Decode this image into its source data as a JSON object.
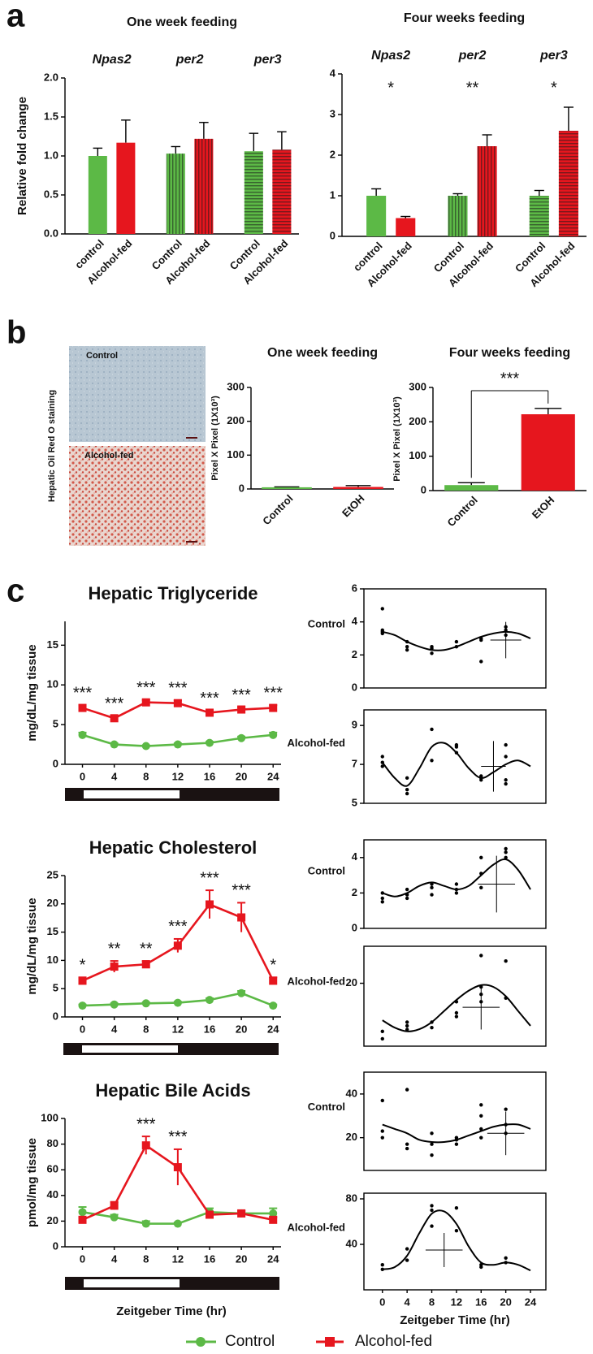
{
  "panel_labels": [
    "a",
    "b",
    "c"
  ],
  "staining": {
    "label": "Hepatic Oil Red O staining",
    "images": [
      "Control",
      "Alcohol-fed"
    ]
  },
  "chart_data": [
    {
      "type": "bar",
      "title": "One week feeding",
      "ylabel": "Relative fold change",
      "groups": [
        "Npas2",
        "per2",
        "per3"
      ],
      "categories": [
        "control",
        "Alcohol-fed",
        "Control",
        "Alcohol-fed",
        "Control",
        "Alcohol-fed"
      ],
      "values": [
        1.0,
        1.17,
        1.03,
        1.22,
        1.06,
        1.08
      ],
      "errors": [
        0.1,
        0.29,
        0.09,
        0.21,
        0.23,
        0.23
      ],
      "colors": [
        "#5cb946",
        "#e6161e",
        "#5cb946",
        "#e6161e",
        "#5cb946",
        "#e6161e"
      ],
      "patterns": [
        "solid",
        "solid",
        "vertical",
        "vertical",
        "horizontal",
        "horizontal"
      ],
      "ylim": [
        0,
        2
      ],
      "yticks": [
        {
          "value": 0,
          "label": "0.0"
        },
        0.5,
        {
          "value": 1,
          "label": "1.0"
        },
        1.5,
        {
          "value": 2,
          "label": "2.0"
        }
      ]
    },
    {
      "type": "bar",
      "title": "Four weeks feeding",
      "groups": [
        "Npas2",
        "per2",
        "per3"
      ],
      "annotations": [
        "*",
        "**",
        "*"
      ],
      "categories": [
        "control",
        "Alcohol-fed",
        "Control",
        "Alcohol-fed",
        "Control",
        "Alcohol-fed"
      ],
      "values": [
        1.0,
        0.45,
        1.0,
        2.22,
        1.0,
        2.6
      ],
      "errors": [
        0.17,
        0.04,
        0.05,
        0.28,
        0.13,
        0.58
      ],
      "colors": [
        "#5cb946",
        "#e6161e",
        "#5cb946",
        "#e6161e",
        "#5cb946",
        "#e6161e"
      ],
      "patterns": [
        "solid",
        "solid",
        "vertical",
        "vertical",
        "horizontal",
        "horizontal"
      ],
      "ylim": [
        0,
        4
      ],
      "yticks": [
        0,
        1,
        2,
        3,
        4
      ]
    },
    {
      "type": "bar",
      "title": "One week feeding",
      "ylabel": "Pixel X Pixel (1X10³)",
      "categories": [
        "Control",
        "EtOH"
      ],
      "values": [
        5,
        6
      ],
      "errors": [
        1,
        4
      ],
      "colors": [
        "#5cb946",
        "#e6161e"
      ],
      "ylim": [
        0,
        300
      ],
      "yticks": [
        0,
        100,
        200,
        300
      ]
    },
    {
      "type": "bar",
      "title": "Four weeks feeding",
      "ylabel": "Pixel X Pixel (1X10³)",
      "significance": "***",
      "categories": [
        "Control",
        "EtOH"
      ],
      "values": [
        16,
        222
      ],
      "errors": [
        7,
        17
      ],
      "colors": [
        "#5cb946",
        "#e6161e"
      ],
      "ylim": [
        0,
        300
      ],
      "yticks": [
        0,
        100,
        200,
        300
      ]
    },
    {
      "type": "line",
      "title": "Hepatic Triglyceride",
      "ylabel": "mg/dL/mg tissue",
      "x": [
        0,
        4,
        8,
        12,
        16,
        20,
        24
      ],
      "xlim": [
        -2.2,
        25
      ],
      "xticks": [
        0,
        4,
        8,
        12,
        16,
        20,
        24
      ],
      "ylim": [
        0,
        18
      ],
      "yticks": [
        0,
        5,
        10,
        15
      ],
      "series": [
        {
          "name": "Control",
          "color": "#5cb946",
          "marker": "circle",
          "values": [
            3.7,
            2.5,
            2.3,
            2.5,
            2.7,
            3.3,
            3.7
          ],
          "errors": [
            0.3,
            0.15,
            0.1,
            0.15,
            0.15,
            0.2,
            0.3
          ]
        },
        {
          "name": "Alcohol-fed",
          "color": "#e6161e",
          "marker": "square",
          "values": [
            7.1,
            5.8,
            7.8,
            7.7,
            6.5,
            6.9,
            7.1
          ],
          "errors": [
            0.35,
            0.3,
            0.3,
            0.35,
            0.3,
            0.3,
            0.35
          ]
        }
      ],
      "annotations": [
        "***",
        "***",
        "***",
        "***",
        "***",
        "***",
        "***"
      ]
    },
    {
      "type": "line",
      "title": "Hepatic Cholesterol",
      "ylabel": "mg/dL/mg tissue",
      "x": [
        0,
        4,
        8,
        12,
        16,
        20,
        24
      ],
      "xlim": [
        -2.2,
        25
      ],
      "xticks": [
        0,
        4,
        8,
        12,
        16,
        20,
        24
      ],
      "ylim": [
        0,
        25
      ],
      "yticks": [
        0,
        5,
        10,
        15,
        20,
        25
      ],
      "series": [
        {
          "name": "Control",
          "color": "#5cb946",
          "marker": "circle",
          "values": [
            2.0,
            2.2,
            2.4,
            2.5,
            3.0,
            4.2,
            2.0
          ],
          "errors": [
            0.2,
            0.2,
            0.2,
            0.2,
            0.3,
            0.4,
            0.2
          ]
        },
        {
          "name": "Alcohol-fed",
          "color": "#e6161e",
          "marker": "square",
          "values": [
            6.4,
            8.9,
            9.3,
            12.6,
            19.9,
            17.6,
            6.4
          ],
          "errors": [
            0.6,
            1.0,
            0.6,
            1.2,
            2.5,
            2.6,
            0.6
          ]
        }
      ],
      "annotations": [
        "*",
        "**",
        "**",
        "***",
        "***",
        "***",
        "*"
      ]
    },
    {
      "type": "line",
      "title": "Hepatic Bile Acids",
      "ylabel": "pmol/mg tissue",
      "xlabel": "Zeitgeber Time (hr)",
      "x": [
        0,
        4,
        8,
        12,
        16,
        20,
        24
      ],
      "xlim": [
        -2.2,
        25
      ],
      "xticks": [
        0,
        4,
        8,
        12,
        16,
        20,
        24
      ],
      "ylim": [
        0,
        100
      ],
      "yticks": [
        0,
        20,
        40,
        60,
        80,
        100
      ],
      "series": [
        {
          "name": "Control",
          "color": "#5cb946",
          "marker": "circle",
          "values": [
            27,
            23,
            18,
            18,
            27,
            26,
            26
          ],
          "errors": [
            4,
            2,
            2,
            1,
            3,
            2,
            4
          ]
        },
        {
          "name": "Alcohol-fed",
          "color": "#e6161e",
          "marker": "square",
          "values": [
            21,
            32,
            79,
            62,
            25,
            26,
            21
          ],
          "errors": [
            2,
            3,
            7,
            14,
            2,
            2,
            2
          ]
        }
      ],
      "annotations": [
        null,
        null,
        "***",
        "***",
        null,
        null,
        null
      ]
    },
    {
      "type": "scatter",
      "label": "Control",
      "xlim": [
        -3,
        26.5
      ],
      "ylim": [
        0,
        6
      ],
      "yticks": [
        0,
        2,
        4,
        6
      ],
      "points": {
        "x": [
          0,
          0,
          0,
          0,
          4,
          4,
          4,
          8,
          8,
          8,
          12,
          12,
          16,
          16,
          16,
          20,
          20,
          20
        ],
        "y": [
          4.8,
          3.4,
          3.3,
          3.5,
          2.8,
          2.5,
          2.3,
          2.4,
          2.1,
          2.5,
          2.8,
          2.5,
          3.0,
          1.6,
          2.9,
          3.7,
          3.5,
          3.2
        ]
      },
      "fit": {
        "x": [
          0,
          2,
          4,
          6,
          8,
          10,
          12,
          14,
          16,
          18,
          20,
          22,
          24
        ],
        "y": [
          3.4,
          3.2,
          2.8,
          2.5,
          2.3,
          2.3,
          2.5,
          2.8,
          3.1,
          3.3,
          3.4,
          3.3,
          3.0
        ]
      },
      "cross": {
        "x": 20,
        "y": 2.9,
        "xerr": 2.5,
        "yerr": 1.1
      }
    },
    {
      "type": "scatter",
      "label": "Alcohol-fed",
      "xlim": [
        -3,
        26.5
      ],
      "ylim": [
        5,
        9.8
      ],
      "yticks": [
        5,
        7,
        9
      ],
      "points": {
        "x": [
          0,
          0,
          0,
          4,
          4,
          4,
          8,
          8,
          12,
          12,
          12,
          16,
          16,
          16,
          20,
          20,
          20,
          20
        ],
        "y": [
          7.4,
          7.1,
          6.9,
          6.3,
          5.7,
          5.5,
          8.8,
          7.2,
          8.0,
          7.9,
          7.6,
          6.3,
          6.2,
          6.4,
          8.0,
          7.4,
          6.2,
          6.0
        ]
      },
      "fit": {
        "x": [
          0,
          2,
          4,
          6,
          8,
          10,
          12,
          14,
          16,
          18,
          20,
          22,
          24
        ],
        "y": [
          7.1,
          6.3,
          5.9,
          6.8,
          7.9,
          8.1,
          7.6,
          6.8,
          6.3,
          6.6,
          7.0,
          7.2,
          6.9
        ]
      },
      "cross": {
        "x": 18,
        "y": 6.9,
        "xerr": 2,
        "yerr": 1.3
      }
    },
    {
      "type": "scatter",
      "label": "Control",
      "xlim": [
        -3,
        26.5
      ],
      "ylim": [
        0,
        5
      ],
      "yticks": [
        0,
        2,
        4
      ],
      "points": {
        "x": [
          0,
          0,
          0,
          4,
          4,
          4,
          8,
          8,
          8,
          12,
          12,
          12,
          16,
          16,
          16,
          20,
          20,
          20
        ],
        "y": [
          2.0,
          1.7,
          1.5,
          2.2,
          1.9,
          1.7,
          2.5,
          2.3,
          1.9,
          2.5,
          2.2,
          2.0,
          4.0,
          3.1,
          2.3,
          4.5,
          4.3,
          4.0
        ]
      },
      "fit": {
        "x": [
          0,
          2,
          4,
          6,
          8,
          10,
          12,
          14,
          16,
          18,
          20,
          22,
          24
        ],
        "y": [
          2.0,
          1.8,
          2.0,
          2.4,
          2.6,
          2.4,
          2.2,
          2.4,
          3.0,
          3.6,
          3.9,
          3.3,
          2.2
        ]
      },
      "cross": {
        "x": 18.5,
        "y": 2.5,
        "xerr": 3,
        "yerr": 1.6
      }
    },
    {
      "type": "scatter",
      "label": "Alcohol-fed",
      "xlim": [
        -3,
        26.5
      ],
      "ylim": [
        3,
        30
      ],
      "yticks": [
        20
      ],
      "points": {
        "x": [
          0,
          0,
          4,
          4,
          4,
          8,
          8,
          12,
          12,
          12,
          16,
          16,
          16,
          16,
          20,
          20
        ],
        "y": [
          7,
          5,
          9.5,
          8.5,
          7.5,
          9.5,
          8,
          15,
          12,
          11,
          27.5,
          19,
          17,
          15,
          26,
          16
        ]
      },
      "fit": {
        "x": [
          0,
          2,
          4,
          6,
          8,
          10,
          12,
          14,
          16,
          18,
          20,
          22,
          24
        ],
        "y": [
          10,
          8,
          7,
          7.6,
          9.5,
          12.5,
          15.5,
          18,
          19.5,
          19,
          16.5,
          12.5,
          8.5
        ]
      },
      "cross": {
        "x": 16,
        "y": 13.5,
        "xerr": 3,
        "yerr": 6
      }
    },
    {
      "type": "scatter",
      "label": "Control",
      "xlim": [
        -3,
        26.5
      ],
      "ylim": [
        5,
        50
      ],
      "yticks": [
        20,
        40
      ],
      "points": {
        "x": [
          0,
          0,
          0,
          4,
          4,
          4,
          8,
          8,
          8,
          12,
          12,
          12,
          16,
          16,
          16,
          16,
          20,
          20,
          20
        ],
        "y": [
          37,
          23,
          20,
          42,
          17,
          15,
          22,
          17,
          12,
          20,
          17,
          19,
          35,
          30,
          24,
          20,
          33,
          22,
          26
        ]
      },
      "fit": {
        "x": [
          0,
          2,
          4,
          6,
          8,
          10,
          12,
          14,
          16,
          18,
          20,
          22,
          24
        ],
        "y": [
          26,
          24,
          22,
          19,
          18,
          18,
          19,
          21,
          23,
          25,
          26,
          26,
          24
        ]
      },
      "cross": {
        "x": 20,
        "y": 22,
        "xerr": 3,
        "yerr": 10
      }
    },
    {
      "type": "scatter",
      "label": "Alcohol-fed",
      "xlabel": "Zeitgeber Time (hr)",
      "xlim": [
        -3,
        26.5
      ],
      "ylim": [
        0,
        85
      ],
      "yticks": [
        40,
        80
      ],
      "xticks": [
        0,
        4,
        8,
        12,
        16,
        20,
        24
      ],
      "points": {
        "x": [
          0,
          0,
          4,
          4,
          8,
          8,
          8,
          12,
          12,
          16,
          16,
          20,
          20
        ],
        "y": [
          22,
          18,
          36,
          26,
          74,
          70,
          56,
          72,
          52,
          22,
          20,
          28,
          24
        ]
      },
      "fit": {
        "x": [
          0,
          2,
          4,
          6,
          8,
          10,
          12,
          14,
          16,
          18,
          20,
          22,
          24
        ],
        "y": [
          18,
          20,
          30,
          50,
          67,
          69,
          58,
          38,
          24,
          22,
          24,
          22,
          17
        ]
      },
      "cross": {
        "x": 10,
        "y": 35,
        "xerr": 3,
        "yerr": 15
      }
    }
  ]
}
